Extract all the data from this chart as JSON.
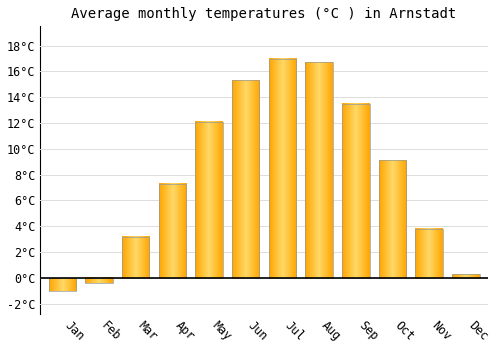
{
  "months": [
    "Jan",
    "Feb",
    "Mar",
    "Apr",
    "May",
    "Jun",
    "Jul",
    "Aug",
    "Sep",
    "Oct",
    "Nov",
    "Dec"
  ],
  "values": [
    -1.0,
    -0.4,
    3.2,
    7.3,
    12.1,
    15.3,
    17.0,
    16.7,
    13.5,
    9.1,
    3.8,
    0.3
  ],
  "bar_color_left": "#FFA500",
  "bar_color_center": "#FFD966",
  "bar_color_right": "#FFA500",
  "bar_edge_color": "#999999",
  "title": "Average monthly temperatures (°C ) in Arnstadt",
  "ylim": [
    -2.8,
    19.5
  ],
  "yticks": [
    -2,
    0,
    2,
    4,
    6,
    8,
    10,
    12,
    14,
    16,
    18
  ],
  "ytick_labels": [
    "-2°C",
    "0°C",
    "2°C",
    "4°C",
    "6°C",
    "8°C",
    "10°C",
    "12°C",
    "14°C",
    "16°C",
    "18°C"
  ],
  "background_color": "#ffffff",
  "grid_color": "#dddddd",
  "title_fontsize": 10,
  "tick_fontsize": 8.5,
  "bar_width": 0.75
}
